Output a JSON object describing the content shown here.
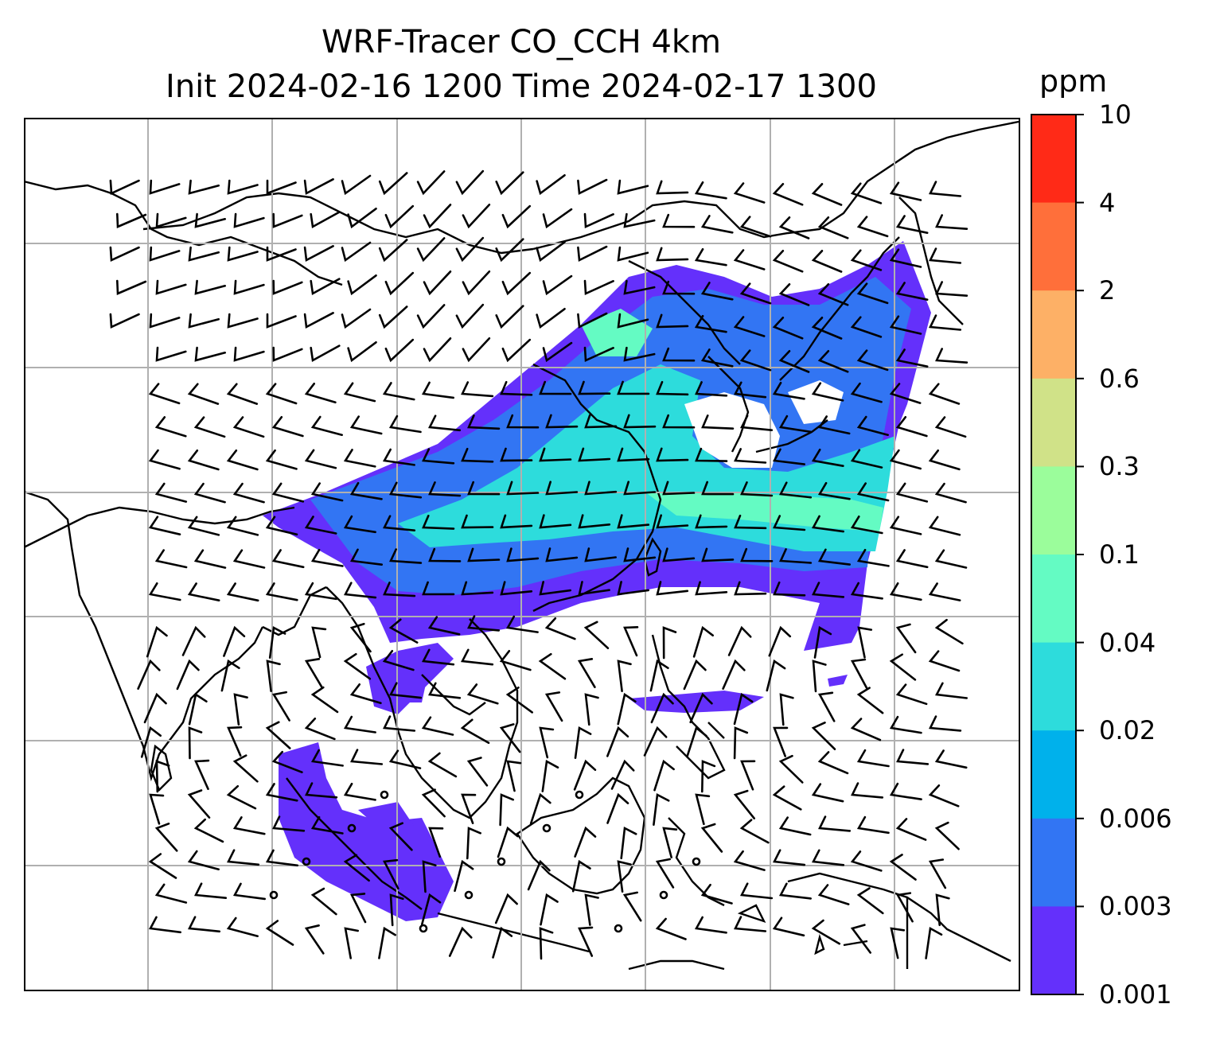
{
  "title": {
    "line1": "WRF-Tracer CO_CCH 4km",
    "line2": "Init 2024-02-16 1200 Time 2024-02-17 1300"
  },
  "colorbar": {
    "unit": "ppm",
    "ticks": [
      "10",
      "4",
      "2",
      "0.6",
      "0.3",
      "0.1",
      "0.04",
      "0.02",
      "0.006",
      "0.003",
      "0.001"
    ],
    "colors_top_to_bottom": [
      "#ff2a17",
      "#ff6f3a",
      "#fdb066",
      "#d0e288",
      "#9bfd9b",
      "#64fbc3",
      "#2ddcdc",
      "#00b1eb",
      "#3275f3",
      "#6430fb"
    ]
  },
  "map": {
    "gridlines": true,
    "coastline_color": "#000000",
    "grid_color": "#b0b0b0",
    "wind_barbs": true
  }
}
